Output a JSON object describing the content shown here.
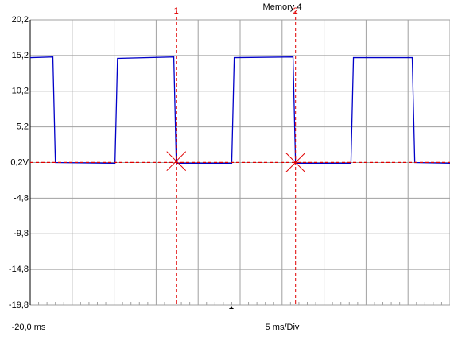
{
  "chart_data": {
    "type": "line",
    "title": "Memory 4",
    "x_label": "5 ms/Div",
    "xlim": [
      -20,
      30
    ],
    "ylim": [
      -19.8,
      20.2
    ],
    "xticks": [
      {
        "value": -20,
        "label": "-20,0 ms"
      }
    ],
    "yticks": [
      {
        "value": 20.2,
        "label": "20,2"
      },
      {
        "value": 15.2,
        "label": "15,2"
      },
      {
        "value": 10.2,
        "label": "10,2"
      },
      {
        "value": 5.2,
        "label": "5,2"
      },
      {
        "value": 0.2,
        "label": "0,2V"
      },
      {
        "value": -4.8,
        "label": "-4,8"
      },
      {
        "value": -9.8,
        "label": "-9,8"
      },
      {
        "value": -14.8,
        "label": "-14,8"
      },
      {
        "value": -19.8,
        "label": "-19,8"
      }
    ],
    "grid": true,
    "x": [
      -20,
      -17.3,
      -17.0,
      -9.9,
      -9.6,
      -2.9,
      -2.6,
      4.0,
      4.3,
      11.3,
      11.6,
      18.2,
      18.5,
      25.5,
      25.8,
      30
    ],
    "series": [
      {
        "color": "#0000c8",
        "values": [
          14.9,
          15.0,
          0.2,
          0.1,
          14.8,
          15.0,
          0.1,
          0.1,
          14.9,
          15.0,
          0.1,
          0.1,
          14.9,
          14.9,
          0.2,
          0.1
        ]
      }
    ],
    "cursors": [
      {
        "label": "1",
        "x": -2.6,
        "y": 0.4,
        "color": "#e00000"
      },
      {
        "label": "2",
        "x": 11.6,
        "y": 0.2,
        "color": "#e00000"
      }
    ]
  }
}
